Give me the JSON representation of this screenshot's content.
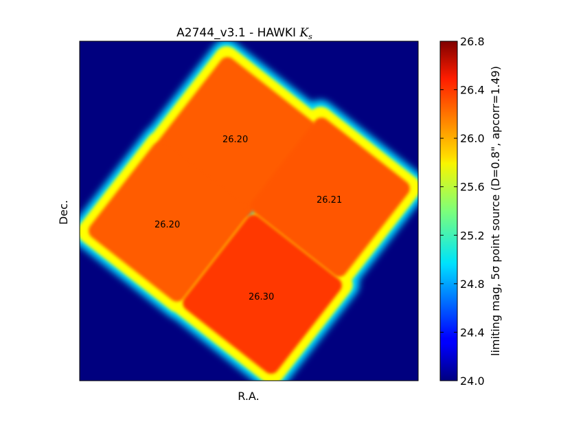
{
  "chart_data": {
    "type": "heatmap",
    "title": "A2744_v3.1 - HAWKI ",
    "title_math": "K",
    "title_math_sub": "s",
    "xlabel": "R.A.",
    "ylabel": "Dec.",
    "colorbar": {
      "label": "limiting mag, 5σ point source (D=0.8\", apcorr=1.49)",
      "range": [
        24.0,
        26.8
      ],
      "ticks": [
        "24.0",
        "24.4",
        "24.8",
        "25.2",
        "25.6",
        "26.0",
        "26.4",
        "26.8"
      ],
      "colormap": "jet"
    },
    "background_value": 24.0,
    "pointings": [
      {
        "label": "26.20",
        "value": 26.2,
        "position": "top"
      },
      {
        "label": "26.21",
        "value": 26.21,
        "position": "right"
      },
      {
        "label": "26.20",
        "value": 26.2,
        "position": "left"
      },
      {
        "label": "26.30",
        "value": 26.3,
        "position": "bottom"
      }
    ],
    "grid": false,
    "legend": "none"
  }
}
